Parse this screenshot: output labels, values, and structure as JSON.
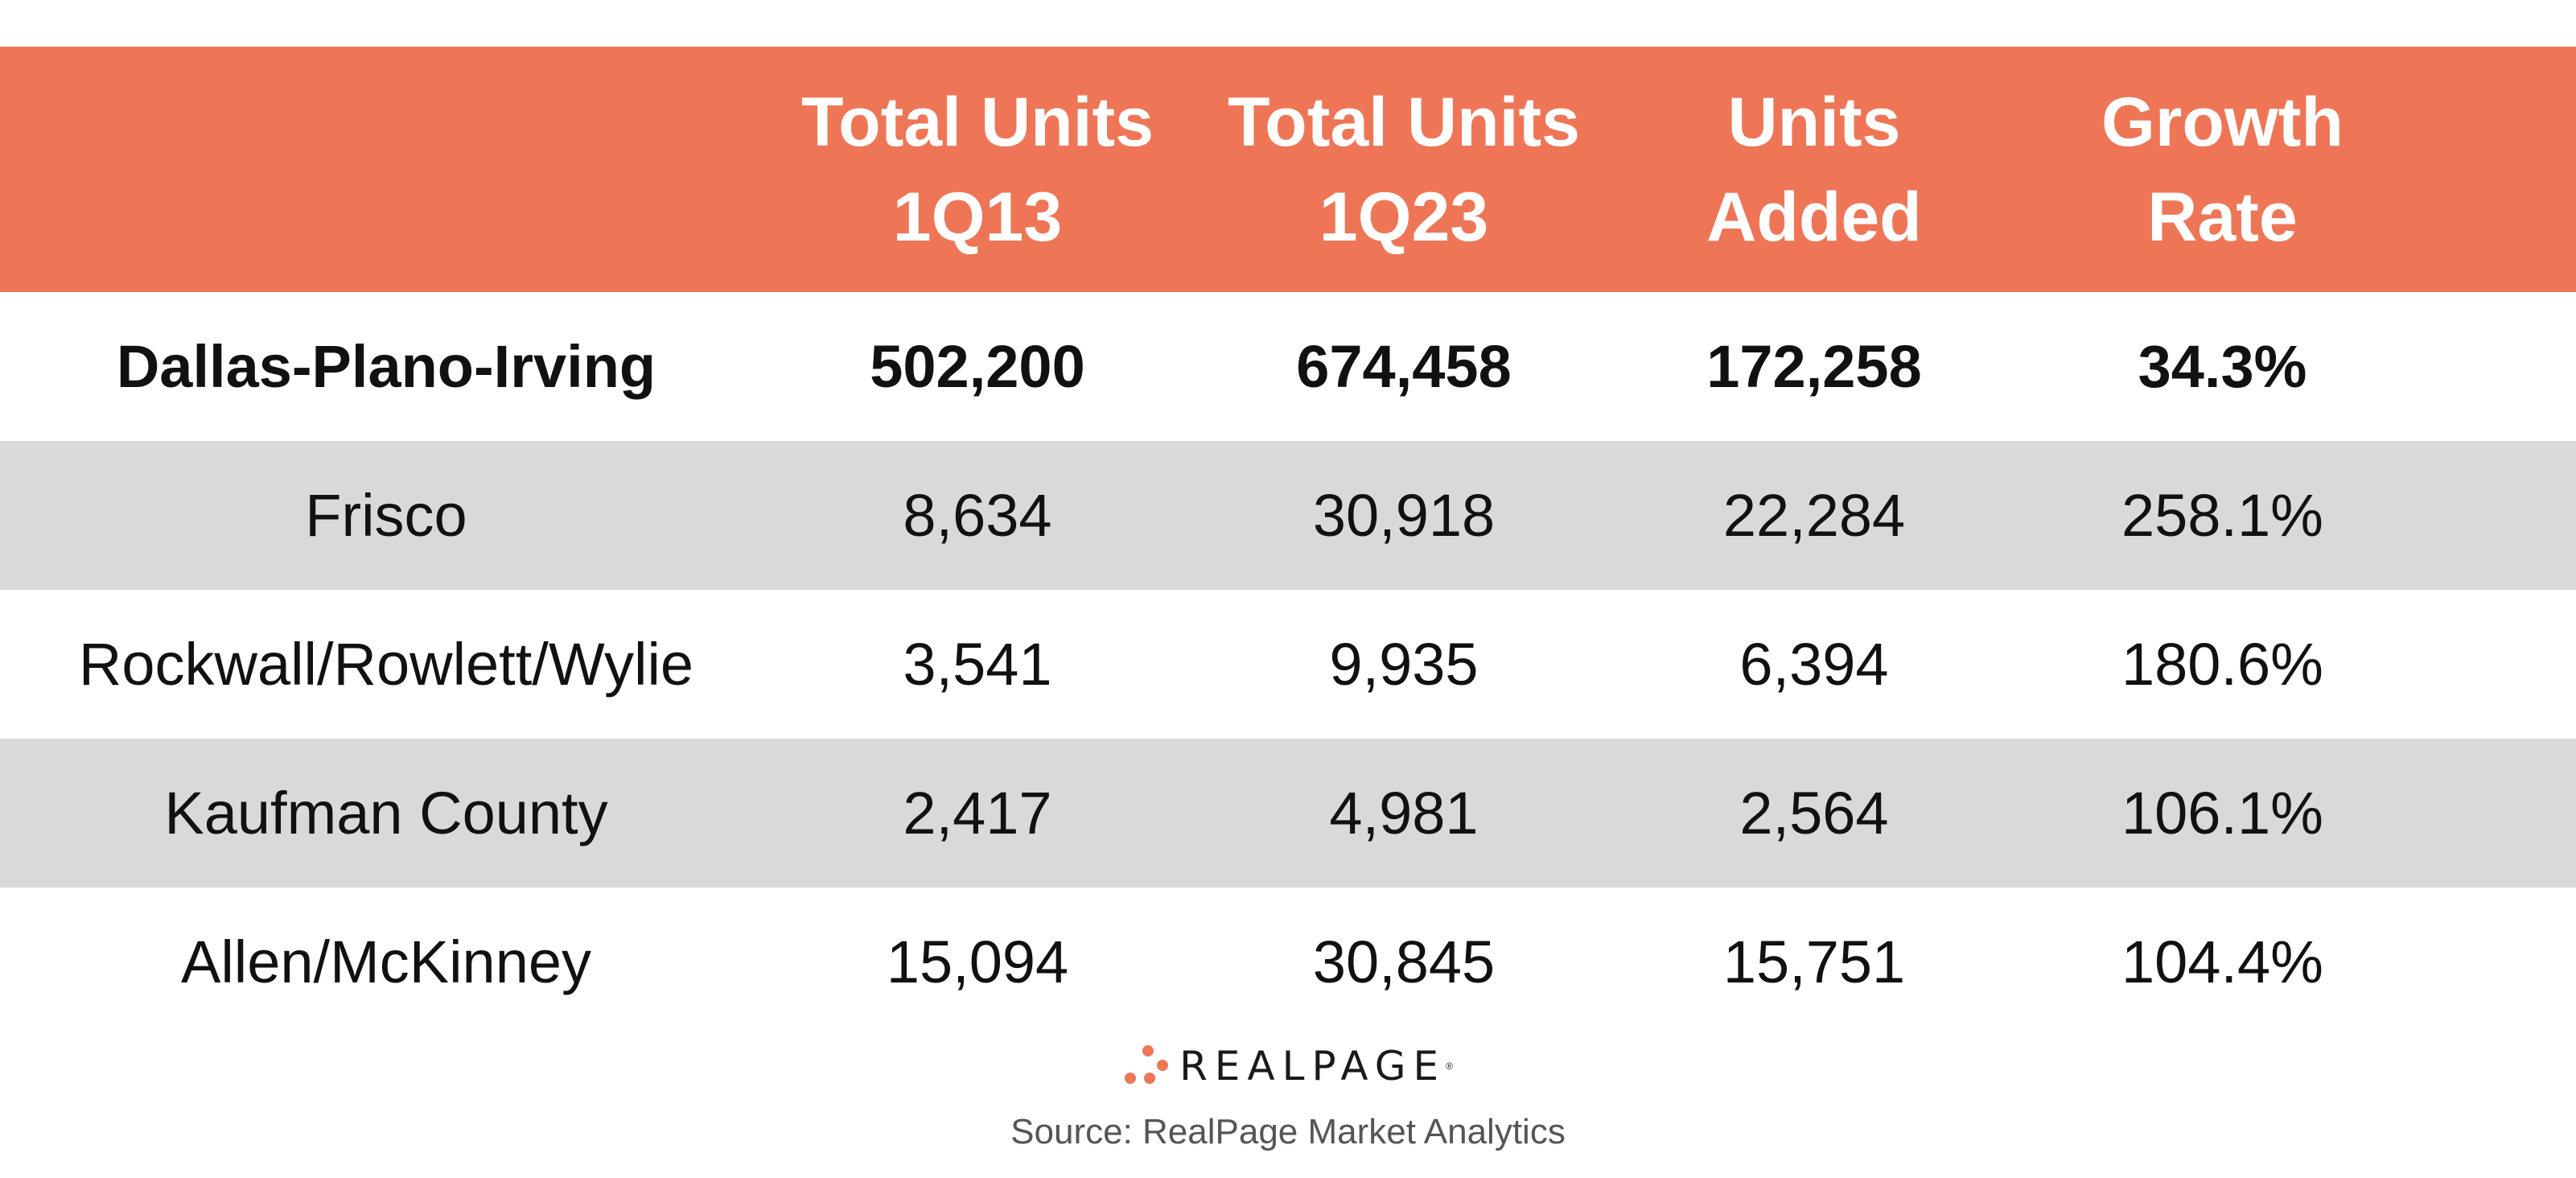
{
  "colors": {
    "header_bg": "#ee7656",
    "header_text": "#ffffff",
    "alt_row_bg": "#d9d9d9",
    "row_bg": "#ffffff",
    "logo_accent": "#ee7656"
  },
  "chart_data": {
    "type": "table",
    "columns": [
      "",
      "Total Units 1Q13",
      "Total Units 1Q23",
      "Units Added",
      "Growth Rate"
    ],
    "header_lines": [
      [
        "",
        ""
      ],
      [
        "Total Units",
        "1Q13"
      ],
      [
        "Total Units",
        "1Q23"
      ],
      [
        "Units",
        "Added"
      ],
      [
        "Growth",
        "Rate"
      ]
    ],
    "rows": [
      [
        "Dallas-Plano-Irving",
        "502,200",
        "674,458",
        "172,258",
        "34.3%"
      ],
      [
        "Frisco",
        "8,634",
        "30,918",
        "22,284",
        "258.1%"
      ],
      [
        "Rockwall/Rowlett/Wylie",
        "3,541",
        "9,935",
        "6,394",
        "180.6%"
      ],
      [
        "Kaufman County",
        "2,417",
        "4,981",
        "2,564",
        "106.1%"
      ],
      [
        "Allen/McKinney",
        "15,094",
        "30,845",
        "15,751",
        "104.4%"
      ]
    ],
    "emphasized_row": 0
  },
  "footer": {
    "logo_text": "REALPAGE",
    "logo_tm": "®",
    "logo_icon": "dots-logo-icon",
    "source": "Source: RealPage Market Analytics"
  }
}
